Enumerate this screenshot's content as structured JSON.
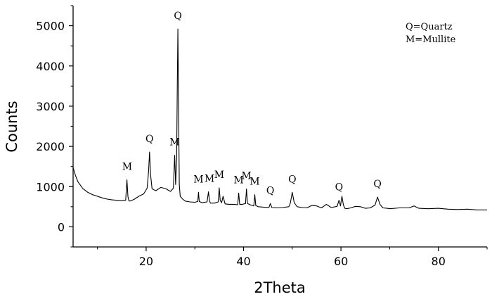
{
  "chart_data": {
    "type": "line",
    "xlabel": "2Theta",
    "ylabel": "Counts",
    "xlim": [
      5,
      90
    ],
    "ylim": [
      -500,
      5500
    ],
    "x_ticks": [
      20,
      40,
      60,
      80
    ],
    "x_minor_ticks": [
      10,
      30,
      50,
      70,
      90
    ],
    "y_ticks": [
      0,
      1000,
      2000,
      3000,
      4000,
      5000
    ],
    "grid": false,
    "legend": {
      "placement": "top-right",
      "entries": [
        "Q=Quartz",
        "M=Mullite"
      ]
    },
    "series": [
      {
        "x": [
          5,
          5.5,
          6,
          7,
          8,
          9,
          10,
          11,
          12,
          13,
          14,
          15,
          15.8,
          16.05,
          16.25,
          16.45,
          16.7,
          17.5,
          18.5,
          19.5,
          20.2,
          20.5,
          20.7,
          20.9,
          21.2,
          21.6,
          22,
          23,
          24,
          25,
          25.6,
          25.85,
          26.05,
          26.25,
          26.4,
          26.52,
          26.64,
          26.8,
          27,
          27.5,
          28,
          29,
          30,
          30.6,
          30.75,
          30.9,
          31.5,
          32.5,
          32.8,
          33.0,
          33.2,
          34,
          34.8,
          35.0,
          35.2,
          35.5,
          35.8,
          36.2,
          37,
          38,
          38.8,
          39.0,
          39.2,
          39.8,
          40.4,
          40.6,
          40.8,
          41.5,
          42.1,
          42.3,
          42.5,
          43,
          44,
          45.2,
          45.5,
          45.8,
          47,
          48,
          49.3,
          49.6,
          50.0,
          50.4,
          51,
          52,
          53,
          54,
          55,
          56,
          57,
          58,
          59.2,
          59.6,
          59.9,
          60.2,
          60.5,
          60.8,
          61.2,
          62,
          63,
          64,
          65,
          66,
          67,
          67.5,
          68,
          68.6,
          69.5,
          70,
          72,
          74,
          75,
          76,
          78,
          80,
          82,
          84,
          86,
          88,
          90
        ],
        "y": [
          1470,
          1270,
          1120,
          950,
          860,
          800,
          760,
          720,
          690,
          670,
          660,
          650,
          660,
          1170,
          760,
          650,
          640,
          680,
          760,
          820,
          960,
          1380,
          1860,
          1300,
          950,
          920,
          900,
          980,
          950,
          880,
          960,
          1780,
          1050,
          1700,
          3600,
          4920,
          3100,
          1050,
          760,
          690,
          640,
          620,
          610,
          630,
          860,
          630,
          600,
          620,
          870,
          650,
          590,
          590,
          620,
          970,
          660,
          600,
          760,
          570,
          560,
          560,
          550,
          840,
          560,
          560,
          580,
          940,
          580,
          540,
          520,
          800,
          530,
          500,
          490,
          480,
          580,
          480,
          470,
          480,
          500,
          590,
          860,
          600,
          500,
          480,
          470,
          530,
          520,
          470,
          560,
          480,
          510,
          660,
          520,
          760,
          540,
          460,
          450,
          470,
          510,
          500,
          460,
          470,
          540,
          740,
          560,
          470,
          460,
          450,
          470,
          470,
          520,
          460,
          450,
          460,
          440,
          430,
          440,
          420,
          420
        ]
      }
    ],
    "annotations": [
      {
        "text": "M",
        "x": 16.1,
        "y": 1170
      },
      {
        "text": "Q",
        "x": 20.7,
        "y": 1860
      },
      {
        "text": "M",
        "x": 25.85,
        "y": 1780
      },
      {
        "text": "Q",
        "x": 26.52,
        "y": 4920
      },
      {
        "text": "M",
        "x": 30.75,
        "y": 860
      },
      {
        "text": "M",
        "x": 33.0,
        "y": 870
      },
      {
        "text": "M",
        "x": 35.0,
        "y": 970
      },
      {
        "text": "M",
        "x": 39.0,
        "y": 840
      },
      {
        "text": "M",
        "x": 40.6,
        "y": 940
      },
      {
        "text": "M",
        "x": 42.3,
        "y": 800
      },
      {
        "text": "Q",
        "x": 45.5,
        "y": 580
      },
      {
        "text": "Q",
        "x": 50.0,
        "y": 860
      },
      {
        "text": "Q",
        "x": 59.6,
        "y": 660
      },
      {
        "text": "Q",
        "x": 67.5,
        "y": 740
      }
    ]
  }
}
